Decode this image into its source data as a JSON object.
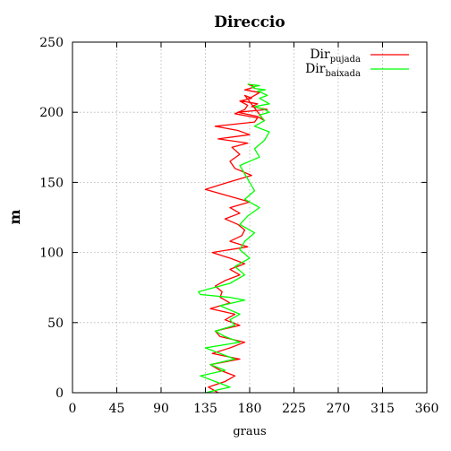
{
  "chart_data": {
    "type": "line",
    "title": "Direccio",
    "xlabel": "graus",
    "ylabel": "m",
    "xlim": [
      0,
      360
    ],
    "ylim": [
      0,
      250
    ],
    "xticks": [
      0,
      45,
      90,
      135,
      180,
      225,
      270,
      315,
      360
    ],
    "yticks": [
      0,
      50,
      100,
      150,
      200,
      250
    ],
    "grid": true,
    "legend_position": "top-right",
    "series": [
      {
        "name": "Dir",
        "name_sub": "pujada",
        "color": "#ff0000",
        "x": [
          148,
          138,
          155,
          165,
          150,
          140,
          170,
          142,
          160,
          175,
          150,
          145,
          170,
          155,
          165,
          140,
          160,
          150,
          152,
          145,
          155,
          170,
          160,
          175,
          160,
          142,
          178,
          160,
          172,
          175,
          168,
          155,
          170,
          160,
          180,
          160,
          135,
          158,
          182,
          165,
          160,
          170,
          162,
          178,
          148,
          180,
          168,
          145,
          185,
          188,
          165,
          175,
          178,
          170,
          182,
          175,
          195,
          188,
          168,
          198,
          182,
          188,
          172,
          180,
          185,
          190,
          175,
          185,
          182,
          178
        ],
        "y": [
          0,
          4,
          8,
          12,
          16,
          20,
          24,
          28,
          32,
          36,
          40,
          44,
          48,
          52,
          56,
          60,
          64,
          68,
          72,
          76,
          80,
          84,
          88,
          92,
          96,
          100,
          104,
          108,
          112,
          116,
          120,
          124,
          128,
          132,
          136,
          140,
          145,
          150,
          155,
          160,
          165,
          170,
          175,
          178,
          181,
          184,
          187,
          190,
          193,
          196,
          199,
          202,
          205,
          208,
          210,
          212,
          194,
          197,
          200,
          202,
          204,
          206,
          208,
          210,
          212,
          214,
          216,
          218,
          219,
          220
        ]
      },
      {
        "name": "Dir",
        "name_sub": "baixada",
        "color": "#00ff00",
        "x": [
          135,
          160,
          145,
          130,
          155,
          140,
          165,
          150,
          135,
          170,
          155,
          145,
          165,
          160,
          170,
          150,
          175,
          160,
          130,
          128,
          160,
          175,
          165,
          180,
          170,
          175,
          185,
          170,
          178,
          190,
          175,
          185,
          180,
          175,
          170,
          190,
          185,
          195,
          200,
          185,
          195,
          190,
          200,
          195,
          185,
          200,
          195,
          190,
          198,
          192,
          188,
          196,
          185,
          182,
          190,
          178
        ],
        "y": [
          0,
          4,
          8,
          12,
          16,
          20,
          24,
          28,
          32,
          36,
          40,
          44,
          48,
          52,
          56,
          62,
          66,
          68,
          70,
          72,
          78,
          84,
          90,
          96,
          102,
          108,
          114,
          120,
          126,
          132,
          138,
          144,
          150,
          156,
          162,
          168,
          174,
          180,
          186,
          190,
          194,
          198,
          200,
          202,
          204,
          206,
          208,
          210,
          212,
          214,
          215,
          216,
          217,
          218,
          219,
          220
        ]
      }
    ]
  }
}
